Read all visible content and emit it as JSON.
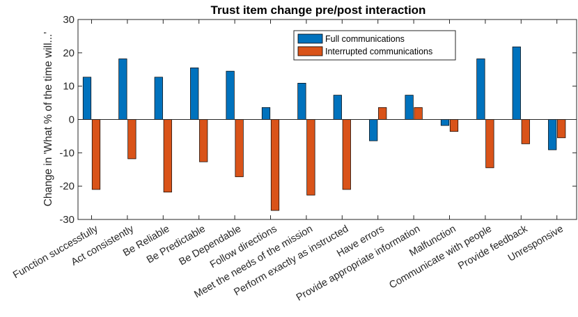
{
  "chart_data": {
    "type": "bar",
    "title": "Trust item change pre/post interaction",
    "xlabel": "",
    "ylabel": "Change in 'What % of the time will...'",
    "ylim": [
      -30,
      30
    ],
    "yticks": [
      -30,
      -20,
      -10,
      0,
      10,
      20,
      30
    ],
    "legend_position": "top-right",
    "grid": false,
    "categories": [
      "Function successfully",
      "Act consistently",
      "Be Reliable",
      "Be Predictable",
      "Be Dependable",
      "Follow directions",
      "Meet the needs of the mission",
      "Perform exactly as instructed",
      "Have errors",
      "Provide appropriate information",
      "Malfunction",
      "Communicate with people",
      "Provide feedback",
      "Unresponsive"
    ],
    "series": [
      {
        "name": "Full communications",
        "color": "#0072BD",
        "values": [
          12.7,
          18.2,
          12.7,
          15.5,
          14.5,
          3.6,
          10.9,
          7.3,
          -6.4,
          7.3,
          -1.8,
          18.2,
          21.8,
          -9.1
        ]
      },
      {
        "name": "Interrupted communications",
        "color": "#D95319",
        "values": [
          -21.0,
          -11.8,
          -21.8,
          -12.7,
          -17.2,
          -27.3,
          -22.7,
          -21.0,
          3.6,
          3.6,
          -3.6,
          -14.5,
          -7.3,
          -5.5
        ]
      }
    ]
  }
}
